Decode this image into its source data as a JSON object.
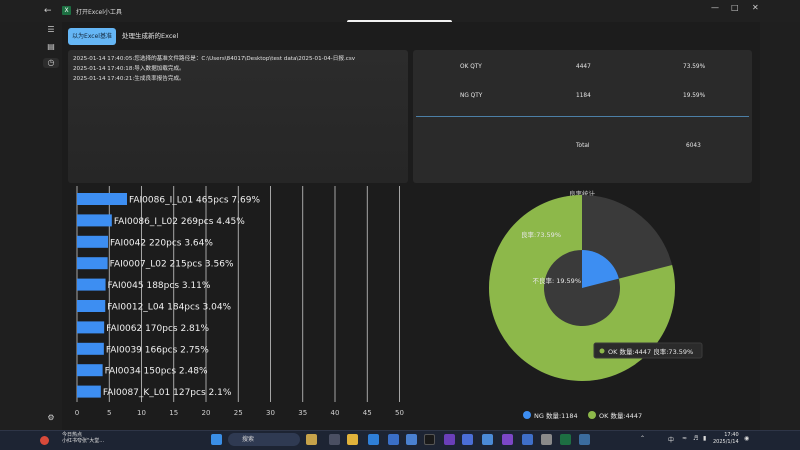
{
  "window": {
    "title": "打开Excel小工具",
    "app_icon_letter": "X"
  },
  "toolbar": {
    "tab_excel_base": "以为Excel基准",
    "tab_generate": "处理生成新的Excel"
  },
  "log": {
    "lines": [
      "2025-01-14 17:40:05:您选择的基准文件路径是：C:\\Users\\84017\\Desktop\\test data\\2025-01-04-日报.csv",
      "2025-01-14 17:40:18:导入数据加载完成。",
      "2025-01-14 17:40:21:生成良率报告完成。"
    ]
  },
  "stats": {
    "ok": {
      "label": "OK QTY",
      "qty": "4447",
      "pct": "73.59%"
    },
    "ng": {
      "label": "NG QTY",
      "qty": "1184",
      "pct": "19.59%"
    },
    "total": {
      "label": "Total",
      "qty": "6043"
    }
  },
  "chart_data": [
    {
      "type": "bar",
      "orientation": "horizontal",
      "categories": [
        "FAI0086_I_L01",
        "FAI0086_I_L02",
        "FAI0042",
        "FAI0007_L02",
        "FAI0045",
        "FAI0012_L04",
        "FAI0062",
        "FAI0039",
        "FAI0034",
        "FAI0087_K_L01"
      ],
      "values": [
        465,
        269,
        220,
        215,
        188,
        184,
        170,
        166,
        150,
        127
      ],
      "percents": [
        "7.69%",
        "4.45%",
        "3.64%",
        "3.56%",
        "3.11%",
        "3.04%",
        "2.81%",
        "2.75%",
        "2.48%",
        "2.1%"
      ],
      "data_labels": [
        "FAI0086_I_L01 465pcs 7.69%",
        "FAI0086_I_L02 269pcs 4.45%",
        "FAI0042 220pcs 3.64%",
        "FAI0007_L02 215pcs 3.56%",
        "FAI0045 188pcs 3.11%",
        "FAI0012_L04 184pcs 3.04%",
        "FAI0062 170pcs 2.81%",
        "FAI0039 166pcs 2.75%",
        "FAI0034 150pcs 2.48%",
        "FAI0087_K_L01 127pcs 2.1%"
      ],
      "xticks": [
        "0",
        "5",
        "10",
        "15",
        "20",
        "25",
        "30",
        "35",
        "40",
        "45",
        "50"
      ],
      "xlim": [
        0,
        50
      ],
      "bar_color": "#3d8ef2",
      "grid": true
    },
    {
      "type": "pie",
      "subtype": "donut",
      "title": "良率统计",
      "slices": [
        {
          "name": "NG",
          "value": 1184,
          "color": "#3d8ef2"
        },
        {
          "name": "OK",
          "value": 4447,
          "color": "#8db84a"
        }
      ],
      "labels": {
        "ok": "良率:73.59%",
        "ng": "不良率: 19.59%"
      },
      "tooltip": "OK 数量:4447  良率:73.59%",
      "legend": [
        {
          "label": "NG 数量:1184",
          "color": "#3d8ef2"
        },
        {
          "label": "OK 数量:4447",
          "color": "#8db84a"
        }
      ],
      "legend_position": "bottom"
    }
  ],
  "taskbar": {
    "notification_line1": "今日热点",
    "notification_line2": "小红书夸张\"大堂...",
    "search_placeholder": "搜索",
    "ime": "中",
    "time": "17:40",
    "date": "2025/1/14"
  }
}
